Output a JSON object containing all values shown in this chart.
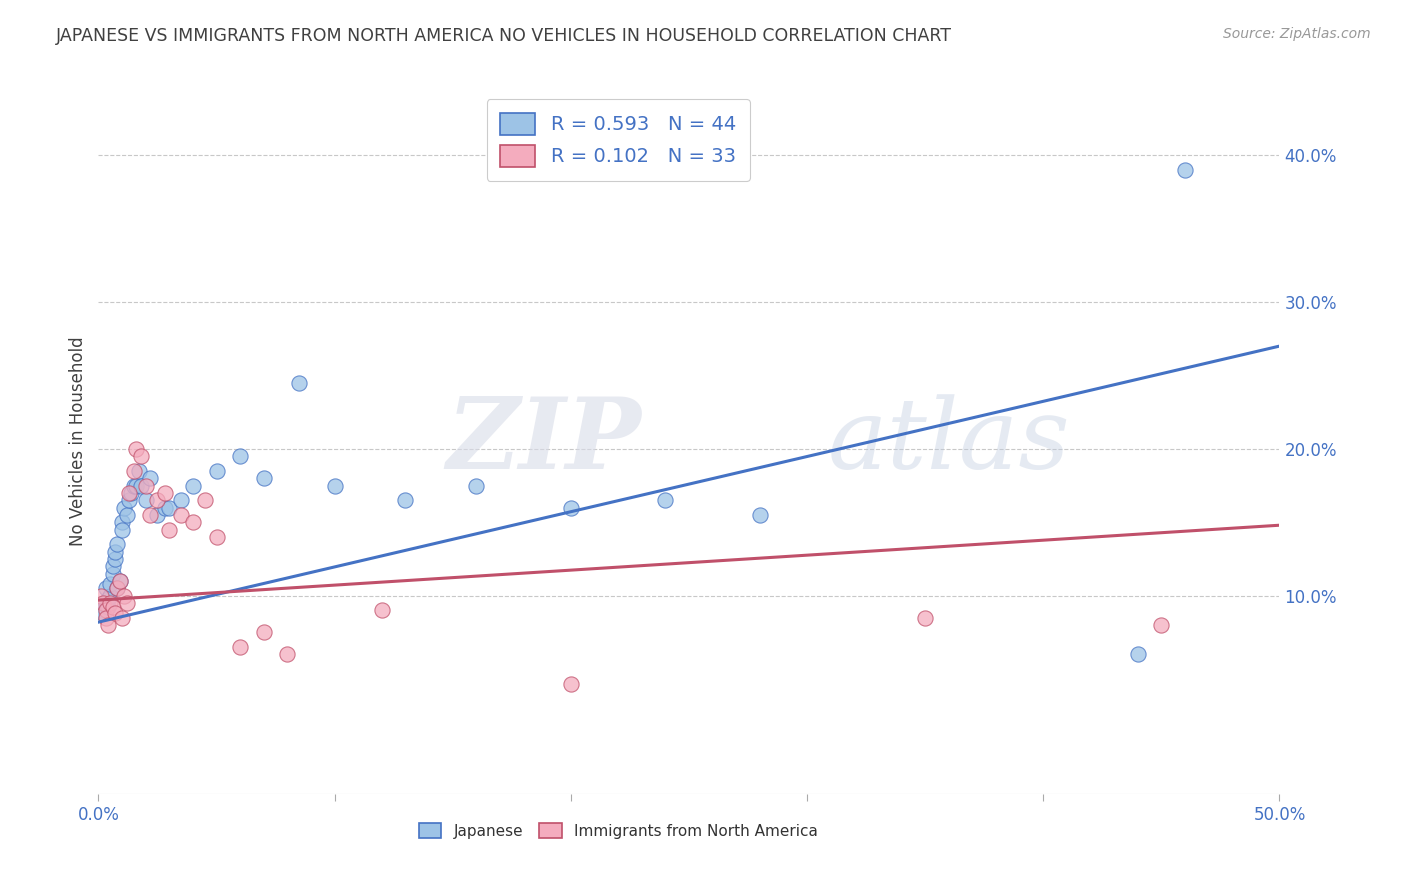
{
  "title": "JAPANESE VS IMMIGRANTS FROM NORTH AMERICA NO VEHICLES IN HOUSEHOLD CORRELATION CHART",
  "source": "Source: ZipAtlas.com",
  "ylabel": "No Vehicles in Household",
  "xlim": [
    0.0,
    0.5
  ],
  "ylim": [
    -0.035,
    0.445
  ],
  "watermark_zip": "ZIP",
  "watermark_atlas": "atlas",
  "blue_scatter_x": [
    0.001,
    0.002,
    0.003,
    0.003,
    0.004,
    0.004,
    0.005,
    0.005,
    0.006,
    0.006,
    0.007,
    0.007,
    0.008,
    0.008,
    0.009,
    0.01,
    0.01,
    0.011,
    0.012,
    0.013,
    0.014,
    0.015,
    0.016,
    0.017,
    0.018,
    0.02,
    0.022,
    0.025,
    0.028,
    0.03,
    0.035,
    0.04,
    0.05,
    0.06,
    0.07,
    0.085,
    0.1,
    0.13,
    0.16,
    0.2,
    0.24,
    0.28,
    0.44,
    0.46
  ],
  "blue_scatter_y": [
    0.09,
    0.088,
    0.095,
    0.105,
    0.092,
    0.098,
    0.1,
    0.108,
    0.115,
    0.12,
    0.125,
    0.13,
    0.135,
    0.105,
    0.11,
    0.15,
    0.145,
    0.16,
    0.155,
    0.165,
    0.17,
    0.175,
    0.175,
    0.185,
    0.175,
    0.165,
    0.18,
    0.155,
    0.16,
    0.16,
    0.165,
    0.175,
    0.185,
    0.195,
    0.18,
    0.245,
    0.175,
    0.165,
    0.175,
    0.16,
    0.165,
    0.155,
    0.06,
    0.39
  ],
  "pink_scatter_x": [
    0.001,
    0.002,
    0.003,
    0.003,
    0.004,
    0.005,
    0.006,
    0.007,
    0.008,
    0.009,
    0.01,
    0.011,
    0.012,
    0.013,
    0.015,
    0.016,
    0.018,
    0.02,
    0.022,
    0.025,
    0.028,
    0.03,
    0.035,
    0.04,
    0.045,
    0.05,
    0.06,
    0.07,
    0.08,
    0.12,
    0.2,
    0.35,
    0.45
  ],
  "pink_scatter_y": [
    0.1,
    0.095,
    0.09,
    0.085,
    0.08,
    0.095,
    0.092,
    0.088,
    0.105,
    0.11,
    0.085,
    0.1,
    0.095,
    0.17,
    0.185,
    0.2,
    0.195,
    0.175,
    0.155,
    0.165,
    0.17,
    0.145,
    0.155,
    0.15,
    0.165,
    0.14,
    0.065,
    0.075,
    0.06,
    0.09,
    0.04,
    0.085,
    0.08
  ],
  "blue_line_x": [
    0.0,
    0.5
  ],
  "blue_line_y": [
    0.082,
    0.27
  ],
  "pink_line_x": [
    0.0,
    0.5
  ],
  "pink_line_y": [
    0.097,
    0.148
  ],
  "blue_color": "#4472c4",
  "pink_line_color": "#c0506a",
  "blue_scatter_color": "#9dc3e6",
  "pink_scatter_color": "#f4acbe",
  "grid_color": "#c8c8c8",
  "background_color": "#ffffff",
  "title_color": "#404040",
  "tick_label_color": "#4472c4",
  "ytick_vals": [
    0.1,
    0.2,
    0.3,
    0.4
  ],
  "xtick_vals": [
    0.0,
    0.1,
    0.2,
    0.3,
    0.4,
    0.5
  ],
  "legend_label1": "R = 0.593   N = 44",
  "legend_label2": "R = 0.102   N = 33",
  "bottom_label1": "Japanese",
  "bottom_label2": "Immigrants from North America"
}
